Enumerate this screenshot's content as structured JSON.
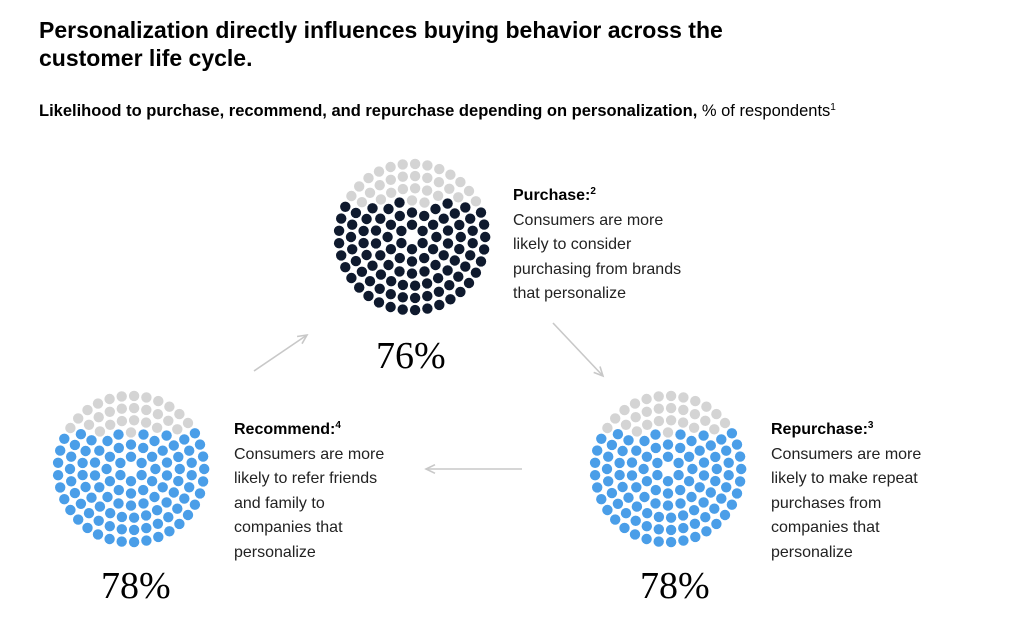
{
  "header": {
    "title": "Personalization directly influences buying behavior across the customer life cycle.",
    "subtitle_bold": "Likelihood to purchase, recommend, and repurchase depending on personalization,",
    "subtitle_rest": " % of respondents",
    "subtitle_note": "1"
  },
  "colors": {
    "filled_purchase": "#0f1a2e",
    "filled_blue": "#4a9ee8",
    "empty": "#d4d4d4",
    "arrow": "#c8c8c8"
  },
  "chart_data": {
    "type": "dot-proportion",
    "items": [
      {
        "key": "purchase",
        "label": "Purchase:",
        "note": "2",
        "value": 76,
        "display": "76%",
        "description": "Consumers are more likely to consider purchasing from brands that personalize"
      },
      {
        "key": "repurchase",
        "label": "Repurchase:",
        "note": "3",
        "value": 78,
        "display": "78%",
        "description": "Consumers are more likely to make repeat purchases from companies that personalize"
      },
      {
        "key": "recommend",
        "label": "Recommend:",
        "note": "4",
        "value": 78,
        "display": "78%",
        "description": "Consumers are more likely to refer friends and family to companies that personalize"
      }
    ],
    "flow": [
      "purchase",
      "repurchase",
      "recommend",
      "purchase"
    ]
  }
}
